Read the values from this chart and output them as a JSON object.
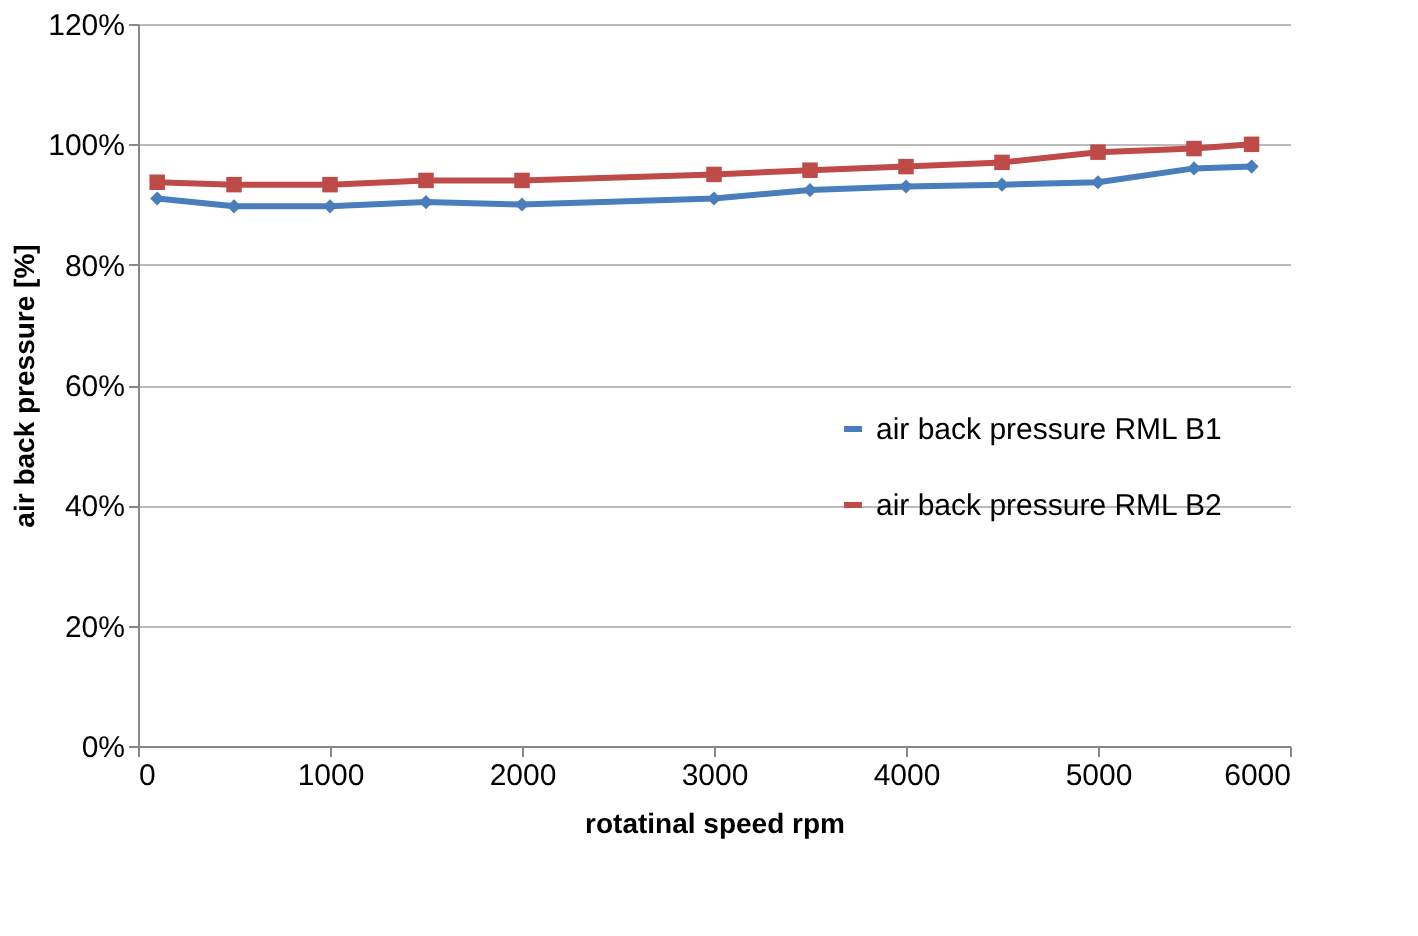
{
  "chart_data": {
    "type": "line",
    "xlabel": "rotatinal speed rpm",
    "ylabel": "air back pressure [%]",
    "xlim": [
      0,
      6000
    ],
    "xticks": [
      0,
      1000,
      2000,
      3000,
      4000,
      5000,
      6000
    ],
    "ylim": [
      0,
      120
    ],
    "yticks": [
      {
        "value": 0,
        "label": "0%"
      },
      {
        "value": 20,
        "label": "20%"
      },
      {
        "value": 40,
        "label": "40%"
      },
      {
        "value": 60,
        "label": "60%"
      },
      {
        "value": 80,
        "label": "80%"
      },
      {
        "value": 100,
        "label": "100%"
      },
      {
        "value": 120,
        "label": "120%"
      }
    ],
    "x": [
      100,
      500,
      1000,
      1500,
      2000,
      3000,
      3500,
      4000,
      4500,
      5000,
      5500,
      5800
    ],
    "series": [
      {
        "name": "air back pressure RML B1",
        "color": "#4a7ebb",
        "marker": "diamond",
        "values": [
          91,
          89.7,
          89.7,
          90.4,
          90,
          91,
          92.4,
          93,
          93.3,
          93.7,
          96,
          96.3
        ]
      },
      {
        "name": "air back pressure RML B2",
        "color": "#be4b48",
        "marker": "square",
        "values": [
          93.7,
          93.3,
          93.3,
          94,
          94,
          95,
          95.7,
          96.3,
          97,
          98.7,
          99.3,
          100
        ]
      }
    ],
    "grid": "y",
    "legend": "right",
    "line_style": "solid"
  }
}
